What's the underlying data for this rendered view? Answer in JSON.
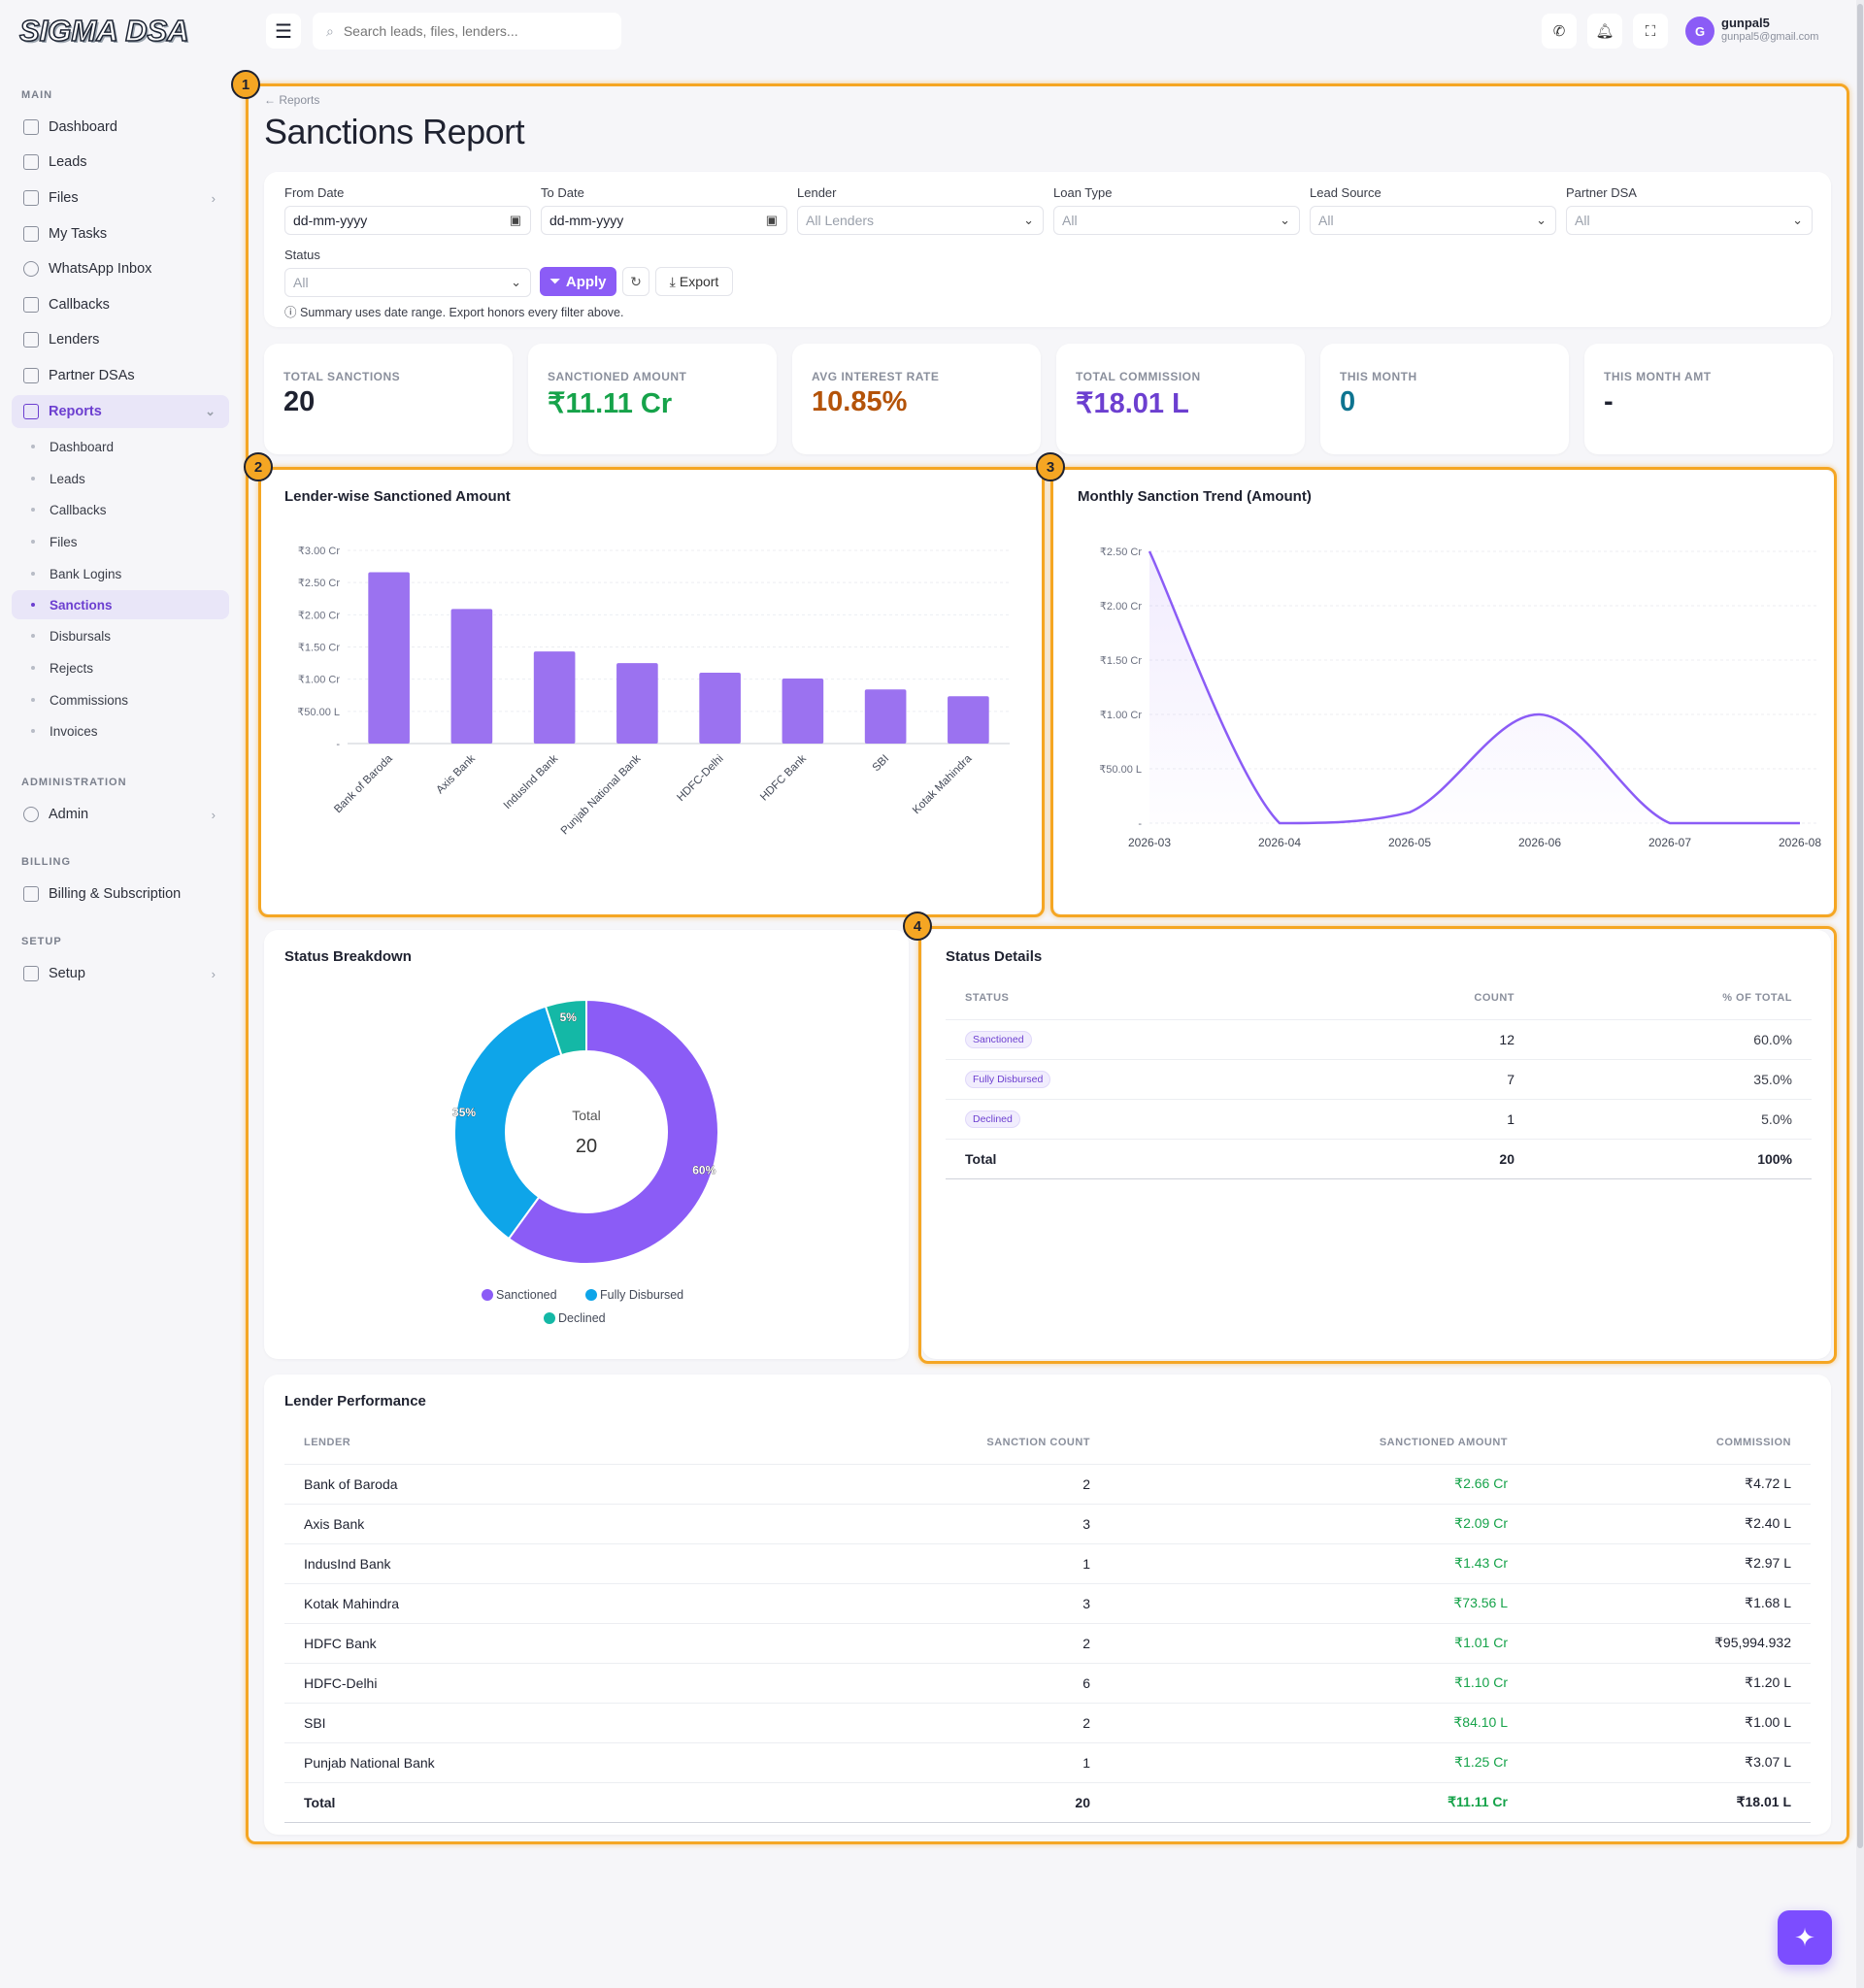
{
  "app": {
    "logo": "SIGMA DSA"
  },
  "sidebar": {
    "sections": {
      "main": "MAIN",
      "administration": "ADMINISTRATION",
      "billing": "BILLING",
      "setup": "SETUP"
    },
    "items": [
      {
        "label": "Dashboard",
        "icon": "home-icon"
      },
      {
        "label": "Leads",
        "icon": "user-plus-icon"
      },
      {
        "label": "Files",
        "icon": "file-icon"
      },
      {
        "label": "My Tasks",
        "icon": "task-icon"
      },
      {
        "label": "WhatsApp Inbox",
        "icon": "whatsapp-icon"
      },
      {
        "label": "Callbacks",
        "icon": "phone-icon"
      },
      {
        "label": "Lenders",
        "icon": "building-icon"
      },
      {
        "label": "Partner DSAs",
        "icon": "users-icon"
      },
      {
        "label": "Reports",
        "icon": "chart-icon"
      }
    ],
    "reports_sub": [
      "Dashboard",
      "Leads",
      "Callbacks",
      "Files",
      "Bank Logins",
      "Sanctions",
      "Disbursals",
      "Rejects",
      "Commissions",
      "Invoices"
    ],
    "admin": "Admin",
    "billing": "Billing & Subscription",
    "setup": "Setup"
  },
  "topbar": {
    "search_placeholder": "Search leads, files, lenders...",
    "user_name": "gunpal5",
    "user_email": "gunpal5@gmail.com",
    "avatar_initial": "G"
  },
  "page": {
    "breadcrumb": "← Reports",
    "title": "Sanctions Report"
  },
  "filters": {
    "from_label": "From Date",
    "from_value": "dd-mm-yyyy",
    "to_label": "To Date",
    "to_value": "dd-mm-yyyy",
    "lender_label": "Lender",
    "lender_value": "All Lenders",
    "loan_label": "Loan Type",
    "loan_value": "All",
    "source_label": "Lead Source",
    "source_value": "All",
    "partner_label": "Partner DSA",
    "partner_value": "All",
    "status_label": "Status",
    "status_value": "All",
    "apply": "Apply",
    "export": "Export",
    "note": "Summary uses date range. Export honors every filter above."
  },
  "kpis": [
    {
      "label": "TOTAL SANCTIONS",
      "value": "20",
      "color": "#1f2230"
    },
    {
      "label": "SANCTIONED AMOUNT",
      "value": "₹11.11 Cr",
      "color": "#16a34a"
    },
    {
      "label": "AVG INTEREST RATE",
      "value": "10.85%",
      "color": "#b45309"
    },
    {
      "label": "TOTAL COMMISSION",
      "value": "₹18.01 L",
      "color": "#6c3fd0"
    },
    {
      "label": "THIS MONTH",
      "value": "0",
      "color": "#0e7490"
    },
    {
      "label": "THIS MONTH AMT",
      "value": "-",
      "color": "#1f2230"
    }
  ],
  "annotations": [
    "1",
    "2",
    "3",
    "4"
  ],
  "chart_data": [
    {
      "type": "bar",
      "title": "Lender-wise Sanctioned Amount",
      "categories": [
        "Bank of Baroda",
        "Axis Bank",
        "IndusInd Bank",
        "Punjab National Bank",
        "HDFC-Delhi",
        "HDFC Bank",
        "SBI",
        "Kotak Mahindra"
      ],
      "values": [
        2.66,
        2.09,
        1.43,
        1.25,
        1.1,
        1.01,
        0.841,
        0.7356
      ],
      "unit": "Cr",
      "yticks": [
        "-",
        "₹50.00 L",
        "₹1.00 Cr",
        "₹1.50 Cr",
        "₹2.00 Cr",
        "₹2.50 Cr",
        "₹3.00 Cr"
      ],
      "ylim": [
        0,
        3
      ],
      "color": "#9b72f0"
    },
    {
      "type": "area",
      "title": "Monthly Sanction Trend (Amount)",
      "x": [
        "2026-03",
        "2026-04",
        "2026-05",
        "2026-06",
        "2026-07",
        "2026-08"
      ],
      "values": [
        2.5,
        0,
        0.1,
        1.0,
        0,
        0
      ],
      "unit": "Cr",
      "yticks": [
        "-",
        "₹50.00 L",
        "₹1.00 Cr",
        "₹1.50 Cr",
        "₹2.00 Cr",
        "₹2.50 Cr"
      ],
      "ylim": [
        0,
        2.5
      ],
      "color": "#8b5cf6"
    },
    {
      "type": "pie",
      "title": "Status Breakdown",
      "center_label": "Total",
      "center_value": "20",
      "slices": [
        {
          "name": "Sanctioned",
          "value": 12,
          "pct": "60%",
          "color": "#8b5cf6"
        },
        {
          "name": "Fully Disbursed",
          "value": 7,
          "pct": "35%",
          "color": "#0ea5e9"
        },
        {
          "name": "Declined",
          "value": 1,
          "pct": "5%",
          "color": "#14b8a6"
        }
      ]
    }
  ],
  "status_details": {
    "title": "Status Details",
    "headers": [
      "STATUS",
      "COUNT",
      "% OF TOTAL"
    ],
    "rows": [
      {
        "status": "Sanctioned",
        "count": "12",
        "pct": "60.0%"
      },
      {
        "status": "Fully Disbursed",
        "count": "7",
        "pct": "35.0%"
      },
      {
        "status": "Declined",
        "count": "1",
        "pct": "5.0%"
      }
    ],
    "total": {
      "label": "Total",
      "count": "20",
      "pct": "100%"
    }
  },
  "lender_perf": {
    "title": "Lender Performance",
    "headers": [
      "LENDER",
      "SANCTION COUNT",
      "SANCTIONED AMOUNT",
      "COMMISSION"
    ],
    "rows": [
      {
        "lender": "Bank of Baroda",
        "count": "2",
        "amount": "₹2.66 Cr",
        "commission": "₹4.72 L"
      },
      {
        "lender": "Axis Bank",
        "count": "3",
        "amount": "₹2.09 Cr",
        "commission": "₹2.40 L"
      },
      {
        "lender": "IndusInd Bank",
        "count": "1",
        "amount": "₹1.43 Cr",
        "commission": "₹2.97 L"
      },
      {
        "lender": "Kotak Mahindra",
        "count": "3",
        "amount": "₹73.56 L",
        "commission": "₹1.68 L"
      },
      {
        "lender": "HDFC Bank",
        "count": "2",
        "amount": "₹1.01 Cr",
        "commission": "₹95,994.932"
      },
      {
        "lender": "HDFC-Delhi",
        "count": "6",
        "amount": "₹1.10 Cr",
        "commission": "₹1.20 L"
      },
      {
        "lender": "SBI",
        "count": "2",
        "amount": "₹84.10 L",
        "commission": "₹1.00 L"
      },
      {
        "lender": "Punjab National Bank",
        "count": "1",
        "amount": "₹1.25 Cr",
        "commission": "₹3.07 L"
      }
    ],
    "total": {
      "label": "Total",
      "count": "20",
      "amount": "₹11.11 Cr",
      "commission": "₹18.01 L"
    }
  }
}
